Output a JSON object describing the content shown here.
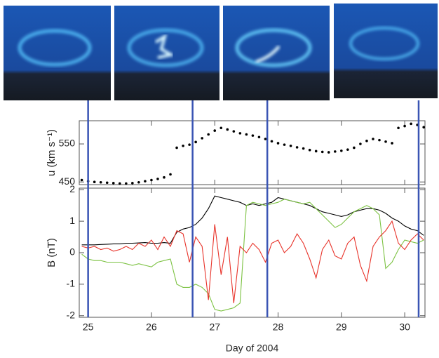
{
  "chart_data": [
    {
      "type": "scatter",
      "ylabel": "u (km s⁻¹)",
      "color": "#000000",
      "x": [
        24.9,
        25.0,
        25.1,
        25.2,
        25.3,
        25.4,
        25.5,
        25.6,
        25.7,
        25.8,
        25.9,
        26.0,
        26.1,
        26.2,
        26.3,
        26.4,
        26.5,
        26.6,
        26.7,
        26.8,
        26.9,
        27.0,
        27.1,
        27.2,
        27.3,
        27.4,
        27.5,
        27.6,
        27.7,
        27.8,
        27.9,
        28.0,
        28.1,
        28.2,
        28.3,
        28.4,
        28.5,
        28.6,
        28.7,
        28.8,
        28.9,
        29.0,
        29.1,
        29.2,
        29.3,
        29.4,
        29.5,
        29.6,
        29.7,
        29.8,
        29.9,
        30.0,
        30.1,
        30.2,
        30.3
      ],
      "values": [
        455,
        452,
        450,
        449,
        448,
        447,
        446,
        446,
        447,
        449,
        452,
        455,
        458,
        462,
        470,
        540,
        545,
        548,
        555,
        565,
        575,
        585,
        592,
        588,
        583,
        578,
        575,
        572,
        568,
        563,
        557,
        552,
        548,
        545,
        541,
        538,
        534,
        531,
        529,
        528,
        530,
        532,
        535,
        540,
        550,
        558,
        563,
        560,
        556,
        552,
        592,
        597,
        603,
        600,
        594
      ],
      "xlim": [
        24.86,
        30.32
      ],
      "ylim": [
        443,
        611
      ],
      "yticks": [
        450,
        550
      ]
    },
    {
      "type": "line",
      "ylabel": "B (nT)",
      "xlabel": "Day of 2004",
      "x": [
        24.9,
        25.0,
        25.1,
        25.2,
        25.3,
        25.4,
        25.5,
        25.6,
        25.7,
        25.8,
        25.9,
        26.0,
        26.1,
        26.2,
        26.3,
        26.4,
        26.5,
        26.6,
        26.7,
        26.8,
        26.9,
        27.0,
        27.1,
        27.2,
        27.3,
        27.4,
        27.5,
        27.6,
        27.7,
        27.8,
        27.9,
        28.0,
        28.1,
        28.2,
        28.3,
        28.4,
        28.5,
        28.6,
        28.7,
        28.8,
        28.9,
        29.0,
        29.1,
        29.2,
        29.3,
        29.4,
        29.5,
        29.6,
        29.7,
        29.8,
        29.9,
        30.0,
        30.1,
        30.2,
        30.3
      ],
      "series": [
        {
          "color": "#000000",
          "values": [
            0.25,
            0.25,
            0.25,
            0.26,
            0.27,
            0.28,
            0.28,
            0.3,
            0.3,
            0.31,
            0.32,
            0.3,
            0.3,
            0.32,
            0.3,
            0.65,
            0.75,
            0.8,
            0.9,
            1.1,
            1.4,
            1.8,
            1.75,
            1.7,
            1.65,
            1.6,
            1.5,
            1.55,
            1.5,
            1.55,
            1.6,
            1.75,
            1.7,
            1.65,
            1.6,
            1.55,
            1.5,
            1.4,
            1.3,
            1.25,
            1.2,
            1.15,
            1.2,
            1.3,
            1.35,
            1.4,
            1.4,
            1.35,
            1.25,
            1.1,
            1.0,
            0.85,
            0.75,
            0.7,
            0.55
          ]
        },
        {
          "color": "#7cc242",
          "values": [
            -0.05,
            -0.2,
            -0.25,
            -0.25,
            -0.3,
            -0.3,
            -0.3,
            -0.35,
            -0.4,
            -0.35,
            -0.4,
            -0.45,
            -0.3,
            -0.25,
            -0.2,
            -1.0,
            -1.1,
            -1.1,
            -1.0,
            -1.1,
            -1.3,
            -1.8,
            -1.85,
            -1.8,
            -1.75,
            -1.6,
            1.5,
            1.6,
            1.55,
            1.5,
            1.55,
            1.6,
            1.7,
            1.65,
            1.6,
            1.55,
            1.6,
            1.4,
            1.2,
            1.0,
            0.8,
            0.9,
            1.1,
            1.3,
            1.4,
            1.5,
            1.4,
            1.2,
            -0.5,
            -0.3,
            0.1,
            0.4,
            0.35,
            0.3,
            0.4
          ]
        },
        {
          "color": "#e8332a",
          "values": [
            0.2,
            0.15,
            0.2,
            0.1,
            0.15,
            0.05,
            0.1,
            0.2,
            0.1,
            0.3,
            0.2,
            0.4,
            0.1,
            0.5,
            0.2,
            0.7,
            0.6,
            -0.3,
            0.5,
            0.2,
            -1.5,
            0.9,
            -0.7,
            0.5,
            -1.6,
            0.2,
            0.0,
            0.3,
            0.1,
            -0.3,
            0.3,
            0.4,
            0.0,
            0.2,
            0.6,
            0.3,
            -0.2,
            -0.8,
            0.1,
            0.4,
            -0.1,
            -0.2,
            0.3,
            0.5,
            -0.4,
            -0.9,
            0.2,
            0.5,
            0.7,
            1.0,
            0.3,
            0.1,
            0.4,
            0.6,
            0.4
          ]
        }
      ],
      "markers": [
        25.0,
        26.65,
        27.83,
        30.22
      ],
      "marker_color": "#3a55b4",
      "xlim": [
        24.86,
        30.32
      ],
      "xticks": [
        25,
        26,
        27,
        28,
        29,
        30
      ],
      "ylim": [
        -2.05,
        2.05
      ],
      "yticks": [
        -2,
        -1,
        0,
        1,
        2
      ]
    }
  ]
}
